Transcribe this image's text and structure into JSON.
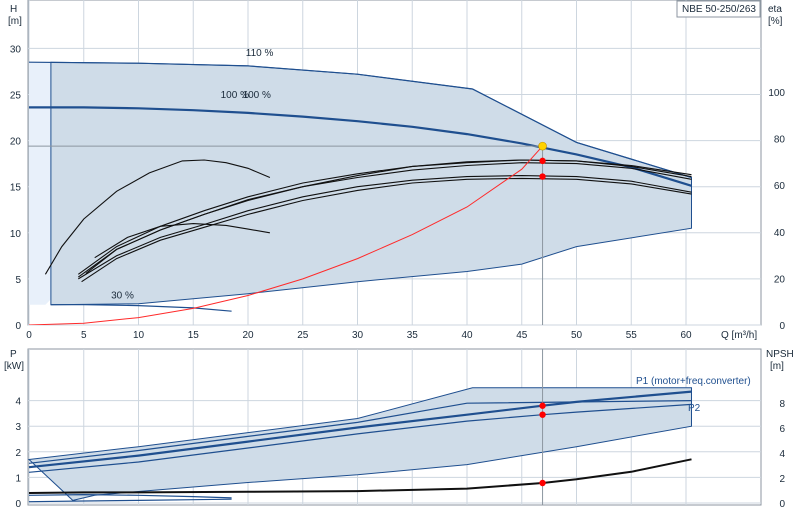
{
  "model_label": "NBE 50-250/263",
  "colors": {
    "envelope_fill": "#cfdce8",
    "envelope_edge": "#1f4f8f",
    "light_region": "#e8f0fa",
    "main_curve": "#1f4f8f",
    "eta_curve": "#111111",
    "system_curve": "#ff2a2a",
    "duty_marker": "#ff0000",
    "duty_point": "#ffd200",
    "grid": "#cdd6df",
    "guide_line": "#8c96a0"
  },
  "chart_data": [
    {
      "type": "line",
      "panel": "head-efficiency",
      "xlabel": "Q [m³/h]",
      "ylabel_line1": "H",
      "ylabel_line2": "[m]",
      "y2label_line1": "eta",
      "y2label_line2": "[%]",
      "xlim": [
        0,
        65
      ],
      "ylim": [
        0,
        32
      ],
      "y2lim": [
        0,
        137
      ],
      "x_ticks": [
        0,
        5,
        10,
        15,
        20,
        25,
        30,
        35,
        40,
        45,
        50,
        55,
        60
      ],
      "y_ticks": [
        0,
        5,
        10,
        15,
        20,
        25,
        30
      ],
      "y2_ticks": [
        0,
        20,
        40,
        60,
        80,
        100
      ],
      "grid": true,
      "curve_labels": [
        {
          "text": "110 %",
          "x": 19.8,
          "y": 29.2
        },
        {
          "text": "100 %",
          "x": 17.5,
          "y": 24.6
        },
        {
          "text": "100 %",
          "x": 19.5,
          "y": 24.6
        },
        {
          "text": "30 %",
          "x": 7.5,
          "y": 2.9
        }
      ],
      "envelope": {
        "upper": [
          [
            2,
            28.5
          ],
          [
            10,
            28.4
          ],
          [
            20,
            28.1
          ],
          [
            30,
            27.2
          ],
          [
            40.5,
            25.6
          ],
          [
            50,
            19.8
          ],
          [
            60.5,
            16.0
          ]
        ],
        "lower": [
          [
            60.5,
            10.5
          ],
          [
            50,
            8.5
          ],
          [
            45,
            6.6
          ],
          [
            40,
            5.8
          ],
          [
            30,
            4.7
          ],
          [
            20,
            3.4
          ],
          [
            10,
            2.3
          ],
          [
            2,
            2.2
          ]
        ]
      },
      "light_region": [
        [
          0,
          28.5
        ],
        [
          7,
          28.5
        ],
        [
          5,
          16
        ],
        [
          3,
          4
        ],
        [
          1.5,
          2.2
        ],
        [
          0,
          2.2
        ]
      ],
      "series": [
        {
          "name": "110 %",
          "role": "head",
          "values": [
            [
              0,
              28.5
            ],
            [
              10,
              28.4
            ],
            [
              20,
              28.1
            ],
            [
              30,
              27.2
            ],
            [
              40.5,
              25.6
            ],
            [
              50,
              19.8
            ],
            [
              60.5,
              16.0
            ]
          ]
        },
        {
          "name": "100 %",
          "role": "head",
          "values": [
            [
              0,
              23.6
            ],
            [
              5,
              23.6
            ],
            [
              10,
              23.5
            ],
            [
              15,
              23.3
            ],
            [
              20,
              23.0
            ],
            [
              25,
              22.6
            ],
            [
              30,
              22.1
            ],
            [
              35,
              21.5
            ],
            [
              40,
              20.7
            ],
            [
              45,
              19.7
            ],
            [
              50,
              18.5
            ],
            [
              55,
              17.1
            ],
            [
              60.5,
              15.1
            ]
          ]
        },
        {
          "name": "30 %",
          "role": "head",
          "values": [
            [
              2,
              2.2
            ],
            [
              5,
              2.2
            ],
            [
              10,
              2.1
            ],
            [
              15,
              1.85
            ],
            [
              18.5,
              1.5
            ]
          ]
        },
        {
          "role": "eta",
          "values": [
            [
              4.5,
              5.0
            ],
            [
              8,
              7.5
            ],
            [
              12,
              9.5
            ],
            [
              16,
              10.9
            ],
            [
              20,
              12.4
            ],
            [
              25,
              13.9
            ],
            [
              30,
              15.0
            ],
            [
              35,
              15.7
            ],
            [
              40,
              16.1
            ],
            [
              45,
              16.2
            ],
            [
              50,
              16.1
            ],
            [
              55,
              15.6
            ],
            [
              60.5,
              14.4
            ]
          ]
        },
        {
          "role": "eta",
          "values": [
            [
              4.8,
              4.7
            ],
            [
              8,
              7.2
            ],
            [
              12,
              9.2
            ],
            [
              16,
              10.6
            ],
            [
              20,
              12.0
            ],
            [
              25,
              13.5
            ],
            [
              30,
              14.6
            ],
            [
              35,
              15.4
            ],
            [
              40,
              15.8
            ],
            [
              45,
              15.9
            ],
            [
              50,
              15.8
            ],
            [
              55,
              15.3
            ],
            [
              60.5,
              14.2
            ]
          ]
        },
        {
          "role": "eta",
          "values": [
            [
              4.5,
              5.5
            ],
            [
              8,
              8.5
            ],
            [
              12,
              10.7
            ],
            [
              16,
              12.4
            ],
            [
              20,
              13.9
            ],
            [
              25,
              15.4
            ],
            [
              30,
              16.4
            ],
            [
              35,
              17.2
            ],
            [
              40,
              17.6
            ],
            [
              45,
              17.9
            ],
            [
              50,
              17.8
            ],
            [
              55,
              17.3
            ],
            [
              60.5,
              16.3
            ]
          ]
        },
        {
          "role": "eta",
          "values": [
            [
              4.5,
              5.2
            ],
            [
              8,
              8.2
            ],
            [
              12,
              10.3
            ],
            [
              16,
              12.0
            ],
            [
              20,
              13.5
            ],
            [
              25,
              15.0
            ],
            [
              30,
              16.0
            ],
            [
              35,
              16.8
            ],
            [
              40,
              17.3
            ],
            [
              45,
              17.6
            ],
            [
              50,
              17.5
            ],
            [
              55,
              17.0
            ],
            [
              60.5,
              15.8
            ]
          ]
        },
        {
          "role": "eta",
          "values": [
            [
              5.2,
              5.6
            ],
            [
              8,
              8.2
            ],
            [
              12,
              10.3
            ],
            [
              16,
              12.0
            ],
            [
              20,
              13.6
            ],
            [
              25,
              15.0
            ],
            [
              30,
              16.2
            ],
            [
              35,
              17.2
            ],
            [
              40,
              17.7
            ],
            [
              45,
              17.9
            ],
            [
              50,
              17.8
            ],
            [
              55,
              17.2
            ],
            [
              60.5,
              16.1
            ]
          ]
        },
        {
          "role": "eta",
          "values": [
            [
              1.5,
              5.5
            ],
            [
              3,
              8.5
            ],
            [
              5,
              11.5
            ],
            [
              8,
              14.5
            ],
            [
              11,
              16.5
            ],
            [
              14,
              17.8
            ],
            [
              16,
              17.9
            ],
            [
              18,
              17.6
            ],
            [
              20,
              17.0
            ],
            [
              22,
              16.0
            ]
          ]
        },
        {
          "role": "eta",
          "values": [
            [
              6,
              7.3
            ],
            [
              9,
              9.5
            ],
            [
              12,
              10.7
            ],
            [
              15,
              11.0
            ],
            [
              18,
              10.8
            ],
            [
              20,
              10.4
            ],
            [
              22,
              10.0
            ]
          ]
        },
        {
          "role": "system",
          "values": [
            [
              0,
              0
            ],
            [
              5,
              0.2
            ],
            [
              10,
              0.8
            ],
            [
              15,
              1.8
            ],
            [
              20,
              3.2
            ],
            [
              25,
              5.0
            ],
            [
              30,
              7.2
            ],
            [
              35,
              9.8
            ],
            [
              40,
              12.8
            ],
            [
              45,
              16.9
            ],
            [
              46.9,
              19.4
            ]
          ]
        }
      ],
      "duty_point": {
        "x": 46.9,
        "y": 19.4
      },
      "markers": [
        [
          46.9,
          19.4
        ],
        [
          46.9,
          17.8
        ],
        [
          46.9,
          16.1
        ]
      ]
    },
    {
      "type": "line",
      "panel": "power-npsh",
      "ylabel_line1": "P",
      "ylabel_line2": "[kW]",
      "y2label_line1": "NPSH",
      "y2label_line2": "[m]",
      "xlim": [
        0,
        65
      ],
      "ylim": [
        0,
        5
      ],
      "y2lim": [
        0,
        10
      ],
      "y_ticks": [
        0,
        1,
        2,
        3,
        4
      ],
      "y2_ticks": [
        0,
        2,
        4,
        6,
        8
      ],
      "grid": true,
      "envelope": {
        "upper": [
          [
            0,
            1.7
          ],
          [
            10,
            2.2
          ],
          [
            20,
            2.75
          ],
          [
            30,
            3.3
          ],
          [
            40.5,
            4.5
          ],
          [
            60.5,
            4.5
          ]
        ],
        "lower": [
          [
            60.5,
            3.0
          ],
          [
            50,
            2.2
          ],
          [
            40,
            1.5
          ],
          [
            30,
            1.1
          ],
          [
            20,
            0.8
          ],
          [
            10,
            0.45
          ],
          [
            6,
            0.3
          ],
          [
            4,
            0.1
          ]
        ]
      },
      "series": [
        {
          "name": "P1 (motor+freq.converter)",
          "role": "power",
          "values": [
            [
              0,
              1.4
            ],
            [
              10,
              1.85
            ],
            [
              20,
              2.4
            ],
            [
              30,
              2.95
            ],
            [
              40,
              3.45
            ],
            [
              46.9,
              3.8
            ],
            [
              50,
              3.95
            ],
            [
              60.5,
              4.35
            ]
          ]
        },
        {
          "name": "P2",
          "role": "power",
          "values": [
            [
              0,
              1.2
            ],
            [
              10,
              1.6
            ],
            [
              20,
              2.15
            ],
            [
              30,
              2.7
            ],
            [
              40,
              3.2
            ],
            [
              46.9,
              3.45
            ],
            [
              50,
              3.55
            ],
            [
              60.5,
              3.85
            ]
          ]
        },
        {
          "role": "power",
          "values": [
            [
              0,
              1.55
            ],
            [
              10,
              2.05
            ],
            [
              20,
              2.6
            ],
            [
              30,
              3.15
            ],
            [
              40,
              3.9
            ],
            [
              60.5,
              4.0
            ]
          ]
        },
        {
          "role": "power",
          "values": [
            [
              0,
              0.3
            ],
            [
              5,
              0.33
            ],
            [
              10,
              0.3
            ],
            [
              15,
              0.25
            ],
            [
              18.5,
              0.2
            ]
          ]
        },
        {
          "role": "power",
          "values": [
            [
              0,
              0.05
            ],
            [
              5,
              0.08
            ],
            [
              10,
              0.1
            ],
            [
              15,
              0.13
            ],
            [
              18.5,
              0.15
            ]
          ]
        },
        {
          "role": "npsh",
          "values": [
            [
              0,
              0.8
            ],
            [
              5,
              0.85
            ],
            [
              10,
              0.85
            ],
            [
              20,
              0.9
            ],
            [
              30,
              0.95
            ],
            [
              40,
              1.15
            ],
            [
              46.9,
              1.6
            ],
            [
              50,
              1.9
            ],
            [
              55,
              2.5
            ],
            [
              60.5,
              3.5
            ]
          ]
        }
      ],
      "markers": [
        [
          46.9,
          3.8
        ],
        [
          46.9,
          3.45
        ]
      ],
      "npsh_marker": [
        46.9,
        1.6
      ]
    }
  ]
}
